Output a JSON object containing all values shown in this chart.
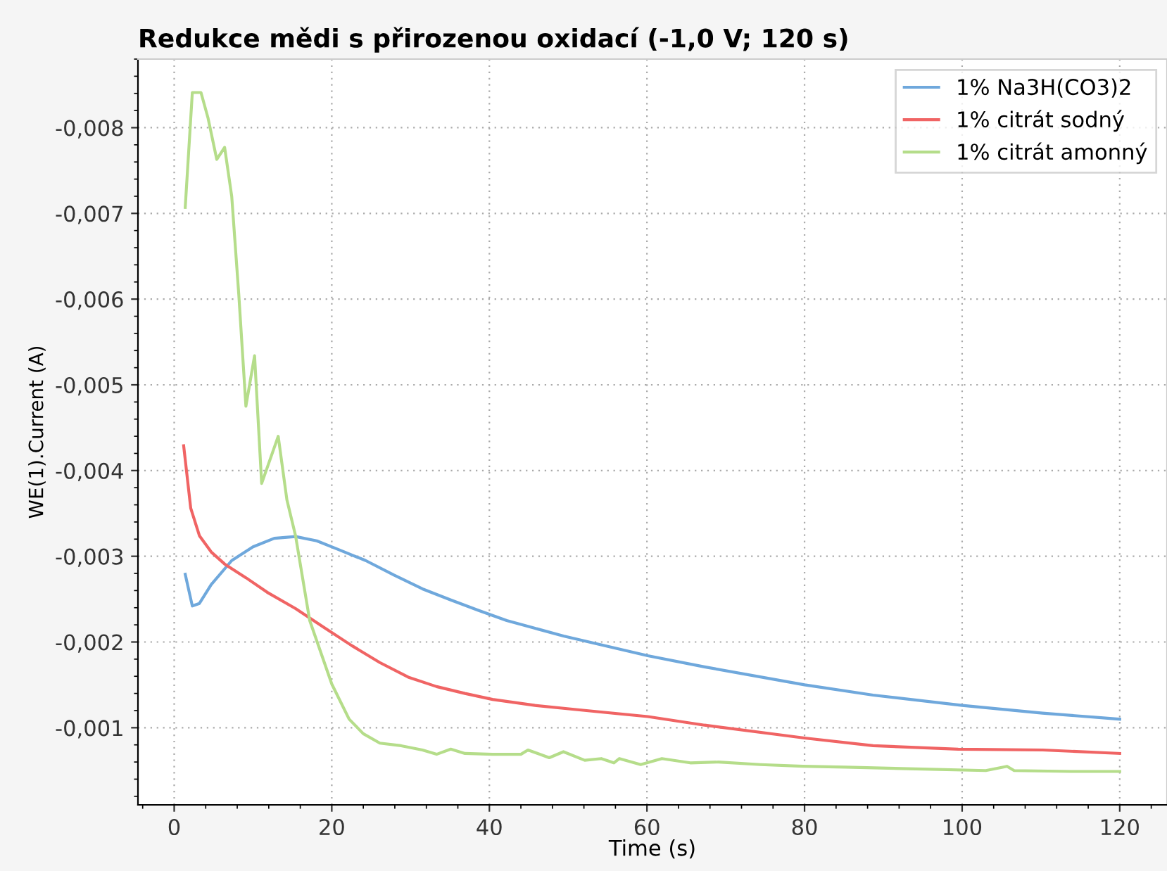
{
  "chart_data": {
    "type": "line",
    "title": "Redukce mědi s přirozenou oxidací (-1,0 V; 120 s)",
    "xlabel": "Time (s)",
    "ylabel": "WE(1).Current (A)",
    "xlim": [
      -4.6,
      126
    ],
    "xticks": [
      0,
      20,
      40,
      60,
      80,
      100,
      120
    ],
    "ylim": [
      -0.0001,
      -0.0088
    ],
    "yticks": [
      {
        "value": -0.001,
        "label": "-0,001"
      },
      {
        "value": -0.002,
        "label": "-0,002"
      },
      {
        "value": -0.003,
        "label": "-0,003"
      },
      {
        "value": -0.004,
        "label": "-0,004"
      },
      {
        "value": -0.005,
        "label": "-0,005"
      },
      {
        "value": -0.006,
        "label": "-0,006"
      },
      {
        "value": -0.007,
        "label": "-0,007"
      },
      {
        "value": -0.008,
        "label": "-0,008"
      }
    ],
    "grid": true,
    "legend": "top right",
    "line_style": "solid",
    "marker": "none",
    "series": [
      {
        "name": "1% Na3H(CO3)2",
        "color": "#6fa8dc",
        "x": [
          1.4,
          2.3,
          3.2,
          4.7,
          7.3,
          10,
          12.7,
          15.4,
          18.1,
          20.8,
          24.3,
          27.9,
          31.5,
          35.1,
          38.6,
          42.2,
          45.8,
          49.4,
          60.1,
          67.3,
          80,
          88.7,
          100,
          110.2,
          120
        ],
        "values": [
          -0.00279,
          -0.00242,
          -0.00245,
          -0.00267,
          -0.00295,
          -0.00311,
          -0.00321,
          -0.00323,
          -0.00318,
          -0.00308,
          -0.00295,
          -0.00278,
          -0.00262,
          -0.00249,
          -0.00237,
          -0.00225,
          -0.00216,
          -0.00207,
          -0.00184,
          -0.00171,
          -0.0015,
          -0.00138,
          -0.00126,
          -0.00117,
          -0.0011
        ]
      },
      {
        "name": "1% citrát sodný",
        "color": "#f06464",
        "x": [
          1.2,
          2.1,
          3.2,
          4.7,
          6.4,
          9.1,
          11.8,
          15.4,
          19,
          22.5,
          26.1,
          29.7,
          33.3,
          36.9,
          40.4,
          45.8,
          51.2,
          60.1,
          67.3,
          80,
          88.7,
          99.5,
          110.2,
          120
        ],
        "values": [
          -0.00429,
          -0.00356,
          -0.00324,
          -0.00305,
          -0.00291,
          -0.00275,
          -0.00258,
          -0.00239,
          -0.00217,
          -0.00196,
          -0.00176,
          -0.00159,
          -0.00148,
          -0.0014,
          -0.00133,
          -0.00126,
          -0.00121,
          -0.00113,
          -0.00103,
          -0.00088,
          -0.00079,
          -0.00075,
          -0.00074,
          -0.0007
        ]
      },
      {
        "name": "1% citrát amonný",
        "color": "#b5dd8a",
        "x": [
          1.4,
          2.3,
          3.4,
          4.3,
          5.4,
          6.4,
          7.3,
          8.2,
          9.1,
          10.2,
          11.1,
          13.2,
          14.3,
          15.4,
          17.2,
          20,
          22.2,
          24,
          26.1,
          28.8,
          31.5,
          33.3,
          35.1,
          36.9,
          40.4,
          44,
          44.9,
          47.6,
          49.4,
          52.1,
          54.2,
          55.8,
          56.5,
          59.2,
          61.9,
          65.5,
          69.1,
          74.4,
          79.8,
          85.2,
          94.1,
          103,
          105.7,
          106.6,
          113.8,
          120
        ],
        "values": [
          -0.00707,
          -0.00841,
          -0.00841,
          -0.00811,
          -0.00763,
          -0.00777,
          -0.0072,
          -0.00605,
          -0.00475,
          -0.00534,
          -0.00385,
          -0.0044,
          -0.00366,
          -0.00324,
          -0.00225,
          -0.00151,
          -0.0011,
          -0.00093,
          -0.00082,
          -0.00079,
          -0.00074,
          -0.00069,
          -0.00075,
          -0.0007,
          -0.00069,
          -0.00069,
          -0.00074,
          -0.00065,
          -0.00072,
          -0.00062,
          -0.00064,
          -0.00059,
          -0.00064,
          -0.00057,
          -0.00064,
          -0.00059,
          -0.0006,
          -0.00057,
          -0.00055,
          -0.00054,
          -0.00052,
          -0.0005,
          -0.00055,
          -0.0005,
          -0.00049,
          -0.00049
        ]
      }
    ]
  }
}
